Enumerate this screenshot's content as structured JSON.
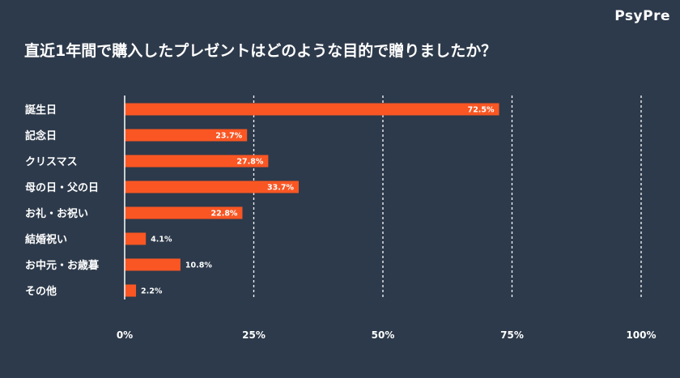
{
  "brand": "PsyPre",
  "chart_data": {
    "type": "bar",
    "orientation": "horizontal",
    "title": "直近1年間で購入したプレゼントはどのような目的で贈りましたか？",
    "categories": [
      "誕生日",
      "記念日",
      "クリスマス",
      "母の日・父の日",
      "お礼・お祝い",
      "結婚祝い",
      "お中元・お歳暮",
      "その他"
    ],
    "values": [
      72.5,
      23.7,
      27.8,
      33.7,
      22.8,
      4.1,
      10.8,
      2.2
    ],
    "value_labels": [
      "72.5%",
      "23.7%",
      "27.8%",
      "33.7%",
      "22.8%",
      "4.1%",
      "10.8%",
      "2.2%"
    ],
    "xlim": [
      0,
      100
    ],
    "x_ticks": [
      0,
      25,
      50,
      75,
      100
    ],
    "x_tick_labels": [
      "0%",
      "25%",
      "50%",
      "75%",
      "100%"
    ],
    "grid": "vertical-dashed",
    "colors": {
      "bar": "#f95623",
      "background": "#2d3a4b",
      "text": "#ffffff",
      "grid": "#ffffff"
    }
  }
}
